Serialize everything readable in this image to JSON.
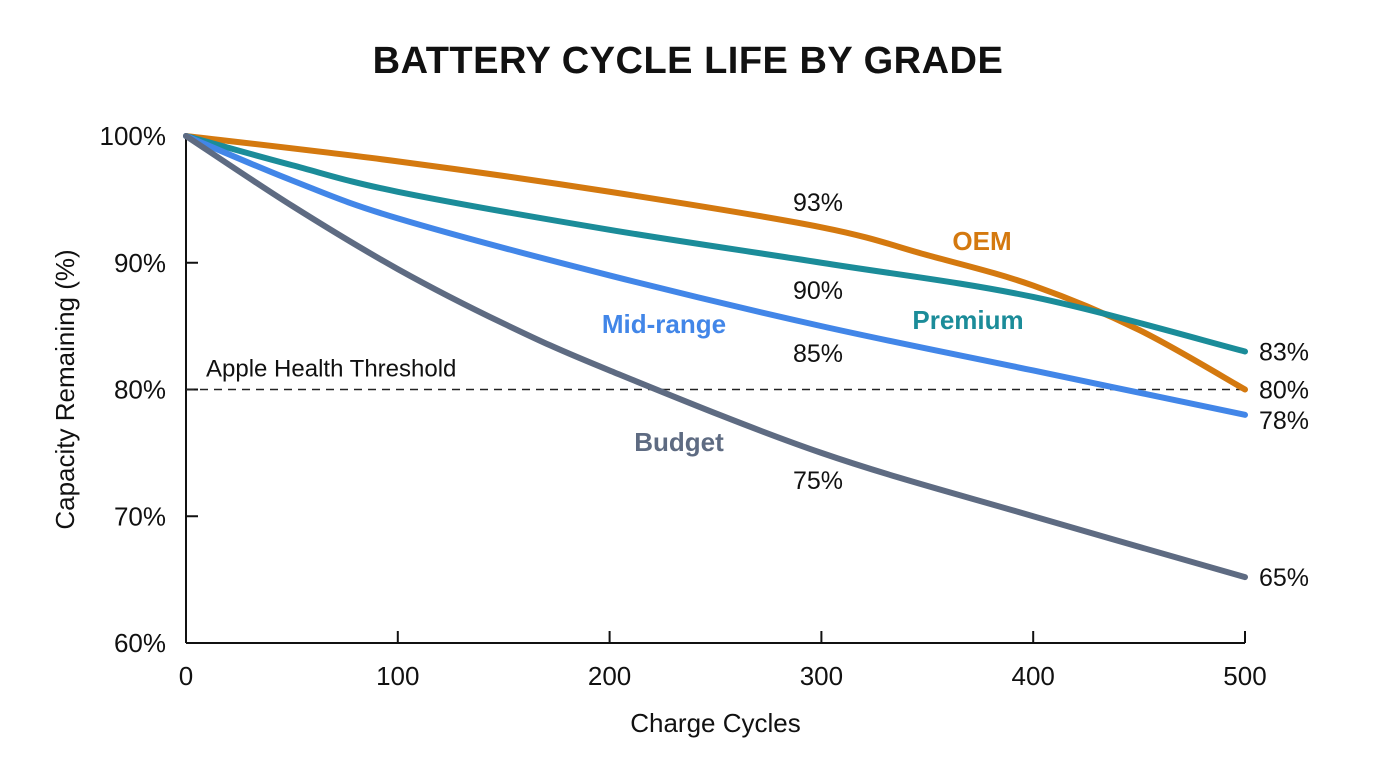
{
  "chart_data": {
    "type": "line",
    "title": "BATTERY CYCLE LIFE BY GRADE",
    "xlabel": "Charge Cycles",
    "ylabel": "Capacity Remaining (%)",
    "xlim": [
      0,
      500
    ],
    "ylim": [
      60,
      100
    ],
    "x_ticks": [
      0,
      100,
      200,
      300,
      400,
      500
    ],
    "y_ticks": [
      60,
      70,
      80,
      90,
      100
    ],
    "y_tick_labels": [
      "60%",
      "70%",
      "80%",
      "90%",
      "100%"
    ],
    "grid": false,
    "threshold": {
      "label": "Apple Health Threshold",
      "value": 80
    },
    "series": [
      {
        "name": "OEM",
        "color": "#D4790F",
        "x": [
          0,
          100,
          200,
          300,
          350,
          400,
          450,
          500
        ],
        "y": [
          100,
          98,
          95.6,
          92.8,
          90.6,
          88.2,
          84.7,
          80
        ],
        "end_label": "80%",
        "mid_label": "93%"
      },
      {
        "name": "Premium",
        "color": "#1B8C99",
        "x": [
          0,
          50,
          100,
          200,
          300,
          400,
          500
        ],
        "y": [
          100,
          97.7,
          95.6,
          92.6,
          90,
          87.3,
          83
        ],
        "end_label": "83%",
        "mid_label": "90%"
      },
      {
        "name": "Mid-range",
        "color": "#4286E8",
        "x": [
          0,
          50,
          100,
          200,
          300,
          400,
          500
        ],
        "y": [
          100,
          96.5,
          93.5,
          89,
          85,
          81.5,
          78
        ],
        "end_label": "78%",
        "mid_label": "85%"
      },
      {
        "name": "Budget",
        "color": "#5E6B82",
        "x": [
          0,
          50,
          100,
          150,
          200,
          300,
          400,
          500
        ],
        "y": [
          100,
          94.5,
          89.5,
          85.2,
          81.5,
          75,
          70,
          65.2
        ],
        "end_label": "65%",
        "mid_label": "75%"
      }
    ]
  }
}
